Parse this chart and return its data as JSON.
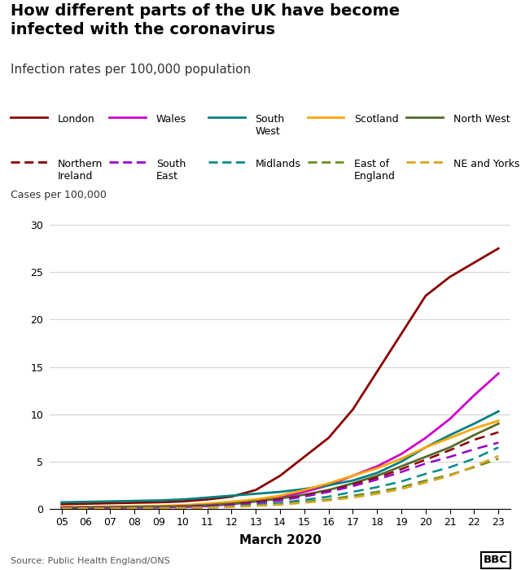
{
  "title": "How different parts of the UK have become\ninfected with the coronavirus",
  "subtitle": "Infection rates per 100,000 population",
  "ylabel": "Cases per 100,000",
  "xlabel": "March 2020",
  "source": "Source: Public Health England/ONS",
  "x": [
    5,
    6,
    7,
    8,
    9,
    10,
    11,
    12,
    13,
    14,
    15,
    16,
    17,
    18,
    19,
    20,
    21,
    22,
    23
  ],
  "ylim": [
    0,
    30
  ],
  "yticks": [
    0,
    5,
    10,
    15,
    20,
    25,
    30
  ],
  "series": {
    "London": {
      "color": "#8B0000",
      "dash": "solid",
      "values": [
        0.5,
        0.55,
        0.6,
        0.65,
        0.7,
        0.8,
        1.0,
        1.3,
        2.0,
        3.5,
        5.5,
        7.5,
        10.5,
        14.5,
        18.5,
        22.5,
        24.5,
        26.0,
        27.5
      ]
    },
    "Wales": {
      "color": "#CC00CC",
      "dash": "solid",
      "values": [
        0.1,
        0.12,
        0.13,
        0.14,
        0.15,
        0.2,
        0.3,
        0.5,
        0.8,
        1.2,
        1.8,
        2.5,
        3.5,
        4.5,
        5.8,
        7.5,
        9.5,
        12.0,
        14.3
      ]
    },
    "South West": {
      "color": "#008080",
      "dash": "solid",
      "values": [
        0.7,
        0.75,
        0.8,
        0.85,
        0.9,
        1.0,
        1.2,
        1.4,
        1.6,
        1.8,
        2.1,
        2.5,
        3.0,
        3.8,
        5.0,
        6.5,
        7.8,
        9.0,
        10.3
      ]
    },
    "Scotland": {
      "color": "#FFA500",
      "dash": "solid",
      "values": [
        0.2,
        0.22,
        0.25,
        0.28,
        0.32,
        0.4,
        0.55,
        0.75,
        1.0,
        1.4,
        2.0,
        2.7,
        3.5,
        4.3,
        5.3,
        6.5,
        7.5,
        8.5,
        9.3
      ]
    },
    "North West": {
      "color": "#556B2F",
      "dash": "solid",
      "values": [
        0.15,
        0.17,
        0.2,
        0.22,
        0.25,
        0.3,
        0.4,
        0.55,
        0.8,
        1.1,
        1.5,
        2.0,
        2.7,
        3.5,
        4.5,
        5.5,
        6.5,
        7.8,
        9.0
      ]
    },
    "Northern Ireland": {
      "color": "#8B0000",
      "dash": "dashed",
      "values": [
        0.1,
        0.12,
        0.13,
        0.14,
        0.16,
        0.2,
        0.3,
        0.45,
        0.7,
        1.0,
        1.4,
        1.9,
        2.6,
        3.3,
        4.2,
        5.2,
        6.2,
        7.3,
        8.1
      ]
    },
    "South East": {
      "color": "#9900CC",
      "dash": "dashed",
      "values": [
        0.1,
        0.11,
        0.12,
        0.13,
        0.15,
        0.2,
        0.28,
        0.4,
        0.6,
        0.9,
        1.3,
        1.8,
        2.4,
        3.1,
        3.9,
        4.8,
        5.5,
        6.3,
        7.0
      ]
    },
    "Midlands": {
      "color": "#008B8B",
      "dash": "dashed",
      "values": [
        0.05,
        0.06,
        0.07,
        0.08,
        0.09,
        0.12,
        0.18,
        0.28,
        0.45,
        0.65,
        0.95,
        1.3,
        1.8,
        2.3,
        2.9,
        3.7,
        4.4,
        5.3,
        6.5
      ]
    },
    "East of England": {
      "color": "#6B8E23",
      "dash": "dashed",
      "values": [
        0.05,
        0.06,
        0.07,
        0.08,
        0.09,
        0.1,
        0.15,
        0.22,
        0.35,
        0.5,
        0.75,
        1.0,
        1.4,
        1.8,
        2.3,
        3.0,
        3.6,
        4.4,
        5.3
      ]
    },
    "NE and Yorks": {
      "color": "#DAA520",
      "dash": "dashed",
      "values": [
        0.05,
        0.06,
        0.07,
        0.08,
        0.09,
        0.1,
        0.14,
        0.2,
        0.32,
        0.45,
        0.65,
        0.9,
        1.2,
        1.6,
        2.1,
        2.8,
        3.5,
        4.5,
        5.6
      ]
    }
  },
  "legend_entries_solid": [
    {
      "label": "London",
      "label2": "",
      "color": "#8B0000"
    },
    {
      "label": "Wales",
      "label2": "",
      "color": "#CC00CC"
    },
    {
      "label": "South",
      "label2": "West",
      "color": "#008080"
    },
    {
      "label": "Scotland",
      "label2": "",
      "color": "#FFA500"
    },
    {
      "label": "North West",
      "label2": "",
      "color": "#556B2F"
    }
  ],
  "legend_entries_dashed": [
    {
      "label": "Northern",
      "label2": "Ireland",
      "color": "#8B0000"
    },
    {
      "label": "South",
      "label2": "East",
      "color": "#9900CC"
    },
    {
      "label": "Midlands",
      "label2": "",
      "color": "#008B8B"
    },
    {
      "label": "East of",
      "label2": "England",
      "color": "#6B8E23"
    },
    {
      "label": "NE and Yorks",
      "label2": "",
      "color": "#DAA520"
    }
  ],
  "background_color": "#ffffff",
  "legend_bg": "#e8e8e8",
  "title_fontsize": 14,
  "subtitle_fontsize": 11,
  "tick_fontsize": 9,
  "ylabel_fontsize": 9,
  "xlabel_fontsize": 11,
  "source_fontsize": 8,
  "legend_fontsize": 9
}
